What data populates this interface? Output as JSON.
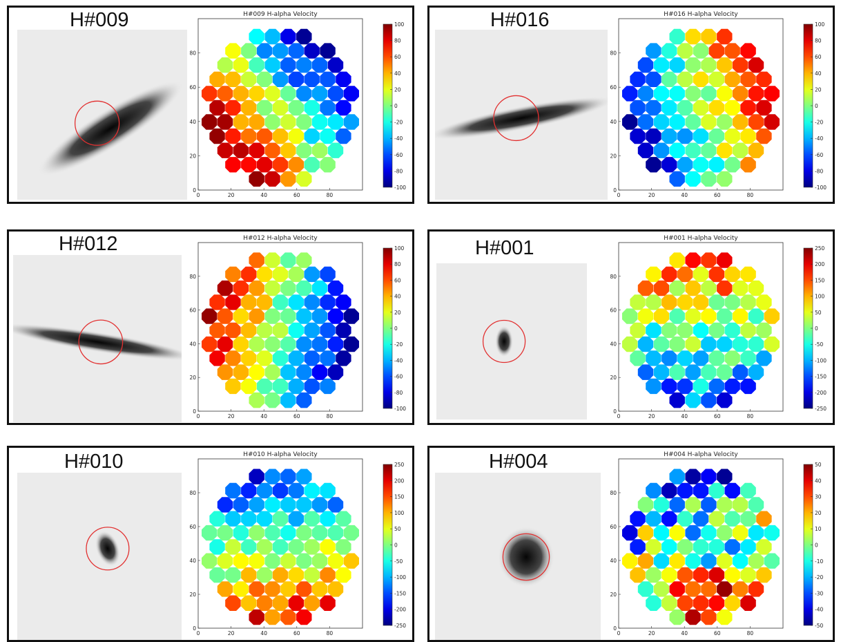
{
  "chart_data": [
    {
      "type": "heatmap",
      "id": "H#009",
      "label": "H#009",
      "title": "H#009 H-alpha Velocity",
      "xlim": [
        0,
        100
      ],
      "ylim": [
        0,
        100
      ],
      "xticks": [
        "0",
        "20",
        "40",
        "60",
        "80"
      ],
      "yticks": [
        "0",
        "20",
        "40",
        "60",
        "80"
      ],
      "colorbar": {
        "min": -100,
        "max": 100,
        "ticks": [
          "100",
          "80",
          "60",
          "40",
          "20",
          "0",
          "-20",
          "-40",
          "-60",
          "-80",
          "-100"
        ]
      },
      "grad": [
        -1,
        -0.8
      ],
      "noise": 0.12
    },
    {
      "type": "heatmap",
      "id": "H#016",
      "label": "H#016",
      "title": "H#016 H-alpha Velocity",
      "xlim": [
        0,
        100
      ],
      "ylim": [
        0,
        100
      ],
      "xticks": [
        "0",
        "20",
        "40",
        "60",
        "80"
      ],
      "yticks": [
        "0",
        "20",
        "40",
        "60",
        "80"
      ],
      "colorbar": {
        "min": -100,
        "max": 100,
        "ticks": [
          "100",
          "80",
          "60",
          "40",
          "20",
          "0",
          "-20",
          "-40",
          "-60",
          "-80",
          "-100"
        ]
      },
      "grad": [
        1.15,
        0.4
      ],
      "noise": 0.12
    },
    {
      "type": "heatmap",
      "id": "H#012",
      "label": "H#012",
      "title": "H#012 H-alpha Velocity",
      "xlim": [
        0,
        100
      ],
      "ylim": [
        0,
        100
      ],
      "xticks": [
        "0",
        "20",
        "40",
        "60",
        "80"
      ],
      "yticks": [
        "0",
        "20",
        "40",
        "60",
        "80"
      ],
      "colorbar": {
        "min": -100,
        "max": 100,
        "ticks": [
          "100",
          "80",
          "60",
          "40",
          "20",
          "0",
          "-20",
          "-40",
          "-60",
          "-80",
          "-100"
        ]
      },
      "grad": [
        -1.15,
        0.2
      ],
      "noise": 0.1
    },
    {
      "type": "heatmap",
      "id": "H#001",
      "label": "H#001",
      "title": "H#001 H-alpha Velocity",
      "xlim": [
        0,
        100
      ],
      "ylim": [
        0,
        100
      ],
      "xticks": [
        "0",
        "20",
        "40",
        "60",
        "80"
      ],
      "yticks": [
        "0",
        "20",
        "40",
        "60",
        "80"
      ],
      "colorbar": {
        "min": -250,
        "max": 250,
        "ticks": [
          "250",
          "200",
          "150",
          "100",
          "50",
          "0",
          "-50",
          "-100",
          "-150",
          "-200",
          "-250"
        ]
      },
      "grad": [
        0.05,
        0.8
      ],
      "noise": 0.15
    },
    {
      "type": "heatmap",
      "id": "H#010",
      "label": "H#010",
      "title": "H#010 H-alpha Velocity",
      "xlim": [
        0,
        100
      ],
      "ylim": [
        0,
        100
      ],
      "xticks": [
        "0",
        "20",
        "40",
        "60",
        "80"
      ],
      "yticks": [
        "0",
        "20",
        "40",
        "60",
        "80"
      ],
      "colorbar": {
        "min": -250,
        "max": 250,
        "ticks": [
          "250",
          "200",
          "150",
          "100",
          "50",
          "0",
          "-50",
          "-100",
          "-150",
          "-200",
          "-250"
        ]
      },
      "grad": [
        0.15,
        -0.95
      ],
      "noise": 0.12
    },
    {
      "type": "heatmap",
      "id": "H#004",
      "label": "H#004",
      "title": "H#004 H-alpha Velocity",
      "xlim": [
        0,
        100
      ],
      "ylim": [
        0,
        100
      ],
      "xticks": [
        "0",
        "20",
        "40",
        "60",
        "80"
      ],
      "yticks": [
        "0",
        "20",
        "40",
        "60",
        "80"
      ],
      "colorbar": {
        "min": -50,
        "max": 50,
        "ticks": [
          "50",
          "40",
          "30",
          "20",
          "10",
          "0",
          "-10",
          "-20",
          "-30",
          "-40",
          "-50"
        ]
      },
      "grad": [
        0.2,
        -0.85
      ],
      "noise": 0.3
    }
  ]
}
